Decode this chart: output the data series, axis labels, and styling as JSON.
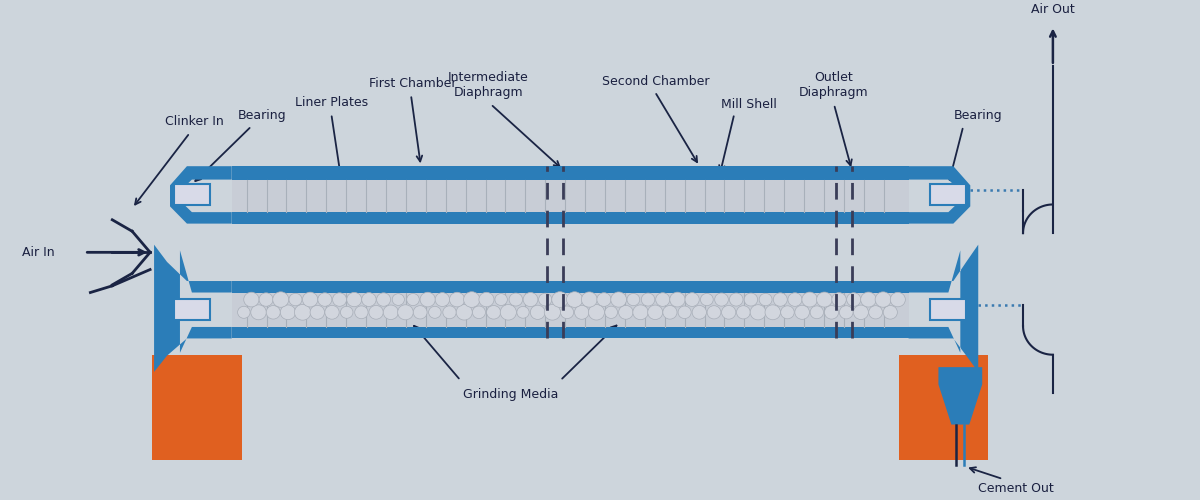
{
  "bg_color": "#cdd5dc",
  "mill_blue": "#2b7db8",
  "liner_gray": "#c8cdd6",
  "bearing_light": "#d8dae8",
  "orange": "#e06020",
  "arrow_color": "#1a2444",
  "dashed_color": "#3a3d58",
  "dotted_color": "#3a7ab0",
  "labels": {
    "clinker_in": "Clinker In",
    "bearing_left": "Bearing",
    "first_chamber": "First Chamber",
    "liner_plates": "Liner Plates",
    "intermediate_diaphragm": "Intermediate\nDiaphragm",
    "second_chamber": "Second Chamber",
    "mill_shell": "Mill Shell",
    "outlet_diaphragm": "Outlet\nDiaphragm",
    "bearing_right": "Bearing",
    "air_out": "Air Out",
    "air_in": "Air In",
    "grinding_media": "Grinding Media",
    "cement_out": "Cement Out"
  },
  "label_fontsize": 9
}
